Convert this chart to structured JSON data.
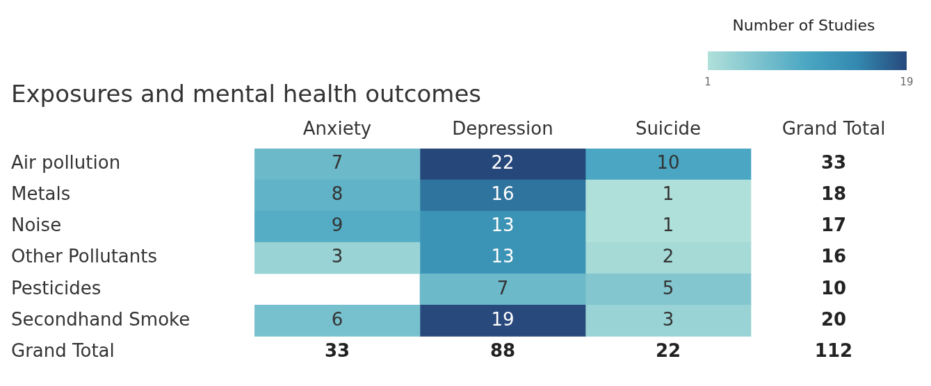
{
  "chart_data": {
    "type": "heatmap",
    "title": "Exposures and mental health outcomes",
    "clabel": "Number of Studies",
    "categories": [
      "Anxiety",
      "Depression",
      "Suicide",
      "Grand Total"
    ],
    "y_categories": [
      "Air pollution",
      "Metals",
      "Noise",
      "Other Pollutants",
      "Pesticides",
      "Secondhand Smoke",
      "Grand Total"
    ],
    "cells": [
      [
        7,
        22,
        10,
        null
      ],
      [
        8,
        16,
        1,
        null
      ],
      [
        9,
        13,
        1,
        null
      ],
      [
        3,
        13,
        2,
        null
      ],
      [
        null,
        7,
        5,
        null
      ],
      [
        6,
        19,
        3,
        null
      ],
      [
        null,
        null,
        null,
        null
      ]
    ],
    "cell_labels": [
      [
        "7",
        "22",
        "10",
        "33"
      ],
      [
        "8",
        "16",
        "1",
        "18"
      ],
      [
        "9",
        "13",
        "1",
        "17"
      ],
      [
        "3",
        "13",
        "2",
        "16"
      ],
      [
        null,
        "7",
        "5",
        "10"
      ],
      [
        "6",
        "19",
        "3",
        "20"
      ],
      [
        "33",
        "88",
        "22",
        "112"
      ]
    ],
    "clim": [
      1,
      19
    ],
    "cticks": [
      1,
      19
    ]
  }
}
